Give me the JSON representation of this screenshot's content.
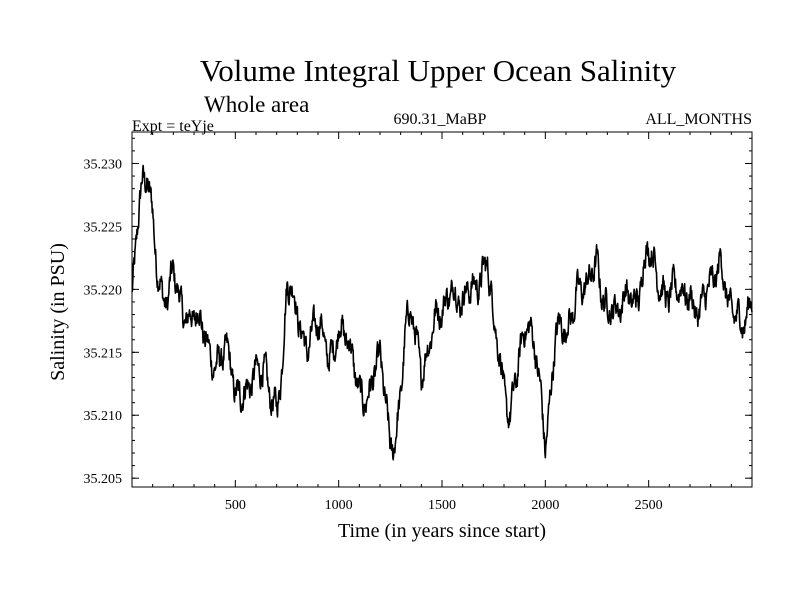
{
  "chart_data": {
    "type": "line",
    "title": "Volume Integral Upper Ocean Salinity",
    "subtitle": "Whole area",
    "experiment_label": "Expt = teYje",
    "period_label": "690.31_MaBP",
    "months_label": "ALL_MONTHS",
    "xlabel": "Time (in years since start)",
    "ylabel": "Salinity (in PSU)",
    "xlim": [
      0,
      3000
    ],
    "ylim": [
      35.2043,
      35.2325
    ],
    "x_ticks": [
      500,
      1000,
      1500,
      2000,
      2500
    ],
    "y_ticks": [
      35.205,
      35.21,
      35.215,
      35.22,
      35.225,
      35.23
    ],
    "x_tick_labels": [
      "500",
      "1000",
      "1500",
      "2000",
      "2500"
    ],
    "y_tick_labels": [
      "35.205",
      "35.210",
      "35.215",
      "35.220",
      "35.225",
      "35.230"
    ],
    "grid": false,
    "series": [
      {
        "name": "Salinity",
        "x": [
          0,
          25,
          50,
          75,
          100,
          125,
          150,
          175,
          200,
          250,
          300,
          350,
          400,
          450,
          480,
          500,
          520,
          550,
          600,
          650,
          700,
          730,
          750,
          800,
          850,
          900,
          950,
          1000,
          1050,
          1100,
          1150,
          1200,
          1230,
          1250,
          1280,
          1300,
          1320,
          1350,
          1400,
          1450,
          1500,
          1550,
          1600,
          1650,
          1700,
          1720,
          1750,
          1800,
          1830,
          1850,
          1900,
          1950,
          1980,
          2000,
          2020,
          2050,
          2100,
          2150,
          2200,
          2250,
          2300,
          2350,
          2400,
          2450,
          2500,
          2550,
          2600,
          2650,
          2700,
          2750,
          2800,
          2850,
          2900,
          2950,
          3000
        ],
        "values": [
          35.219,
          35.224,
          35.2275,
          35.229,
          35.227,
          35.222,
          35.219,
          35.218,
          35.221,
          35.219,
          35.2175,
          35.216,
          35.215,
          35.2145,
          35.213,
          35.211,
          35.2125,
          35.213,
          35.2125,
          35.213,
          35.2115,
          35.214,
          35.2195,
          35.2185,
          35.216,
          35.2165,
          35.215,
          35.2175,
          35.2145,
          35.2125,
          35.212,
          35.2135,
          35.211,
          35.208,
          35.2095,
          35.2115,
          35.2155,
          35.2175,
          35.2145,
          35.2165,
          35.2175,
          35.2215,
          35.2185,
          35.2195,
          35.2225,
          35.223,
          35.217,
          35.2115,
          35.2105,
          35.2135,
          35.216,
          35.2155,
          35.2125,
          35.2085,
          35.2105,
          35.2155,
          35.217,
          35.2205,
          35.219,
          35.2225,
          35.219,
          35.217,
          35.2205,
          35.2195,
          35.2225,
          35.2215,
          35.2195,
          35.219,
          35.2205,
          35.218,
          35.2195,
          35.2235,
          35.2175,
          35.2165,
          35.2205
        ]
      }
    ]
  }
}
